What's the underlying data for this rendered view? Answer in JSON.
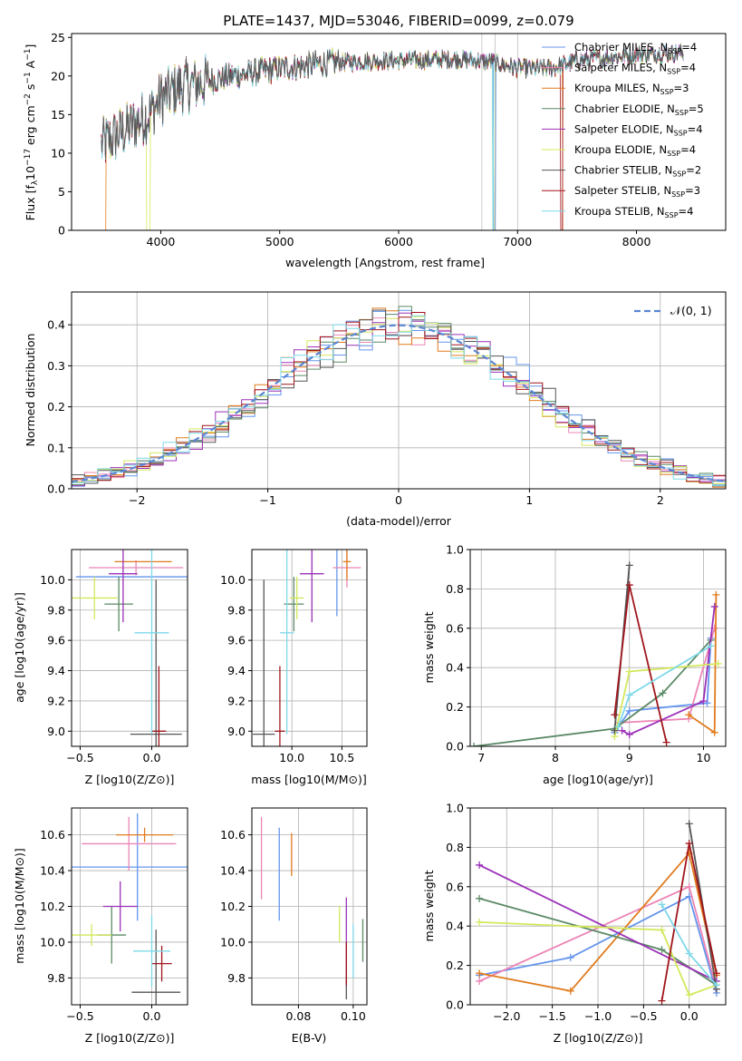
{
  "title": "PLATE=1437, MJD=53046, FIBERID=0099, z=0.079",
  "colors": {
    "Chabrier MILES": "#6495ed",
    "Salpeter MILES": "#ec85b6",
    "Kroupa MILES": "#e07b1e",
    "Chabrier ELODIE": "#5b8a66",
    "Salpeter ELODIE": "#9b30b8",
    "Kroupa ELODIE": "#d4e85c",
    "Chabrier STELIB": "#555555",
    "Salpeter STELIB": "#a0151c",
    "Kroupa STELIB": "#7ed8e8"
  },
  "panel_spectrum": {
    "xlabel": "wavelength [Angstrom, rest frame]",
    "ylabel_main": "Flux [f",
    "ylabel_sub": "λ",
    "ylabel_rest": "10",
    "ylabel_exp": "−17",
    "ylabel_tail": " erg cm",
    "ylabel_exp2": "−2",
    "ylabel_tail2": " s",
    "ylabel_exp3": "−1",
    "ylabel_tail3": " A",
    "ylabel_exp4": "−1",
    "ylabel_end": "]",
    "legend": [
      {
        "name": "Chabrier MILES",
        "n": "4"
      },
      {
        "name": "Salpeter MILES",
        "n": "4"
      },
      {
        "name": "Kroupa MILES",
        "n": "3"
      },
      {
        "name": "Chabrier ELODIE",
        "n": "5"
      },
      {
        "name": "Salpeter ELODIE",
        "n": "4"
      },
      {
        "name": "Kroupa ELODIE",
        "n": "4"
      },
      {
        "name": "Chabrier STELIB",
        "n": "2"
      },
      {
        "name": "Salpeter STELIB",
        "n": "3"
      },
      {
        "name": "Kroupa STELIB",
        "n": "4"
      }
    ],
    "legend_n_prefix": "N",
    "legend_n_sub": "SSP",
    "legend_n_eq": "="
  },
  "panel_hist": {
    "xlabel": "(data-model)/error",
    "ylabel": "Normed distribution",
    "legend_label": "𝒩(0, 1)"
  },
  "panel_age_Z": {
    "xlabel_a": "Z [log",
    "xlabel_b": "10",
    "xlabel_c": "(Z/Z",
    "xlabel_d": "⊙",
    "xlabel_e": ")]",
    "ylabel": "age  [log10(age/yr)]"
  },
  "panel_age_mass": {
    "xlabel": "mass [log10(M/M⊙)]"
  },
  "panel_weight_age": {
    "xlabel": "age  [log10(age/yr)]",
    "ylabel": "mass weight"
  },
  "panel_mass_Z": {
    "xlabel": "Z [log10(Z/Z⊙)]",
    "ylabel": "mass [log10(M/M⊙)]"
  },
  "panel_mass_ebv": {
    "xlabel": "E(B-V)"
  },
  "panel_weight_Z": {
    "xlabel": "Z [log10(Z/Z⊙)]",
    "ylabel": "mass weight"
  },
  "chart_data": [
    {
      "type": "line",
      "title": "PLATE=1437, MJD=53046, FIBERID=0099, z=0.079",
      "xlabel": "wavelength [Angstrom, rest frame]",
      "xlim": [
        3250,
        8750
      ],
      "ylim": [
        0,
        25.5
      ],
      "xticks": [
        4000,
        5000,
        6000,
        7000,
        8000
      ],
      "yticks": [
        0,
        5,
        10,
        15,
        20,
        25
      ],
      "continuum": [
        [
          3500,
          11
        ],
        [
          3600,
          12
        ],
        [
          3750,
          13.5
        ],
        [
          3900,
          15
        ],
        [
          4000,
          17
        ],
        [
          4150,
          18.5
        ],
        [
          4300,
          19
        ],
        [
          4600,
          20
        ],
        [
          5000,
          21
        ],
        [
          5500,
          21.8
        ],
        [
          6000,
          22
        ],
        [
          6500,
          22.2
        ],
        [
          6800,
          21.8
        ],
        [
          7000,
          21
        ],
        [
          7300,
          21
        ],
        [
          7500,
          22
        ],
        [
          8000,
          22.8
        ],
        [
          8400,
          23
        ]
      ]
    },
    {
      "type": "line",
      "xlabel": "(data-model)/error",
      "ylabel": "Normed distribution",
      "xlim": [
        -2.5,
        2.5
      ],
      "ylim": [
        0,
        0.48
      ],
      "xticks": [
        -2,
        -1,
        0,
        1,
        2
      ],
      "yticks": [
        0.0,
        0.1,
        0.2,
        0.3,
        0.4
      ],
      "reference": "N(0,1)"
    },
    {
      "type": "scatter",
      "xlabel": "Z",
      "ylabel": "age",
      "xlim": [
        -0.56,
        0.25
      ],
      "ylim": [
        8.9,
        10.2
      ],
      "xticks": [
        -0.5,
        0.0
      ],
      "yticks": [
        9.0,
        9.2,
        9.4,
        9.6,
        9.8,
        10.0
      ],
      "points": [
        {
          "model": "Chabrier MILES",
          "x": -0.05,
          "xerr": 0.48,
          "y": 10.02,
          "yerr": 0.0
        },
        {
          "model": "Salpeter MILES",
          "x": -0.11,
          "xerr": 0.33,
          "y": 10.08,
          "yerr": 0.05
        },
        {
          "model": "Kroupa MILES",
          "x": -0.06,
          "xerr": 0.2,
          "y": 10.12,
          "yerr": 0.0
        },
        {
          "model": "Chabrier ELODIE",
          "x": -0.23,
          "xerr": 0.1,
          "y": 9.84,
          "yerr": 0.18
        },
        {
          "model": "Salpeter ELODIE",
          "x": -0.2,
          "xerr": 0.1,
          "y": 10.04,
          "yerr": 0.32
        },
        {
          "model": "Kroupa ELODIE",
          "x": -0.4,
          "xerr": 0.16,
          "y": 9.88,
          "yerr": 0.14
        },
        {
          "model": "Chabrier STELIB",
          "x": 0.03,
          "xerr": 0.18,
          "y": 8.98,
          "yerr": 1.02
        },
        {
          "model": "Salpeter STELIB",
          "x": 0.05,
          "xerr": 0.05,
          "y": 9.0,
          "yerr": 0.43
        },
        {
          "model": "Kroupa STELIB",
          "x": 0.0,
          "xerr": 0.12,
          "y": 9.65,
          "yerr": 0.67
        }
      ]
    },
    {
      "type": "scatter",
      "xlabel": "mass",
      "ylabel": "age",
      "xlim": [
        9.6,
        10.75
      ],
      "ylim": [
        8.9,
        10.2
      ],
      "xticks": [
        10.0,
        10.5
      ],
      "points": [
        {
          "model": "Chabrier MILES",
          "x": 10.45,
          "xerr": 0.0,
          "y": 10.02,
          "yerr": 0.26
        },
        {
          "model": "Salpeter MILES",
          "x": 10.55,
          "xerr": 0.14,
          "y": 10.08,
          "yerr": 0.13
        },
        {
          "model": "Kroupa MILES",
          "x": 10.55,
          "xerr": 0.04,
          "y": 10.12,
          "yerr": 0.12
        },
        {
          "model": "Chabrier ELODIE",
          "x": 10.02,
          "xerr": 0.1,
          "y": 9.84,
          "yerr": 0.18
        },
        {
          "model": "Salpeter ELODIE",
          "x": 10.2,
          "xerr": 0.12,
          "y": 10.04,
          "yerr": 0.32
        },
        {
          "model": "Kroupa ELODIE",
          "x": 10.05,
          "xerr": 0.07,
          "y": 9.88,
          "yerr": 0.14
        },
        {
          "model": "Chabrier STELIB",
          "x": 9.72,
          "xerr": 0.11,
          "y": 8.98,
          "yerr": 1.02
        },
        {
          "model": "Salpeter STELIB",
          "x": 9.88,
          "xerr": 0.05,
          "y": 9.0,
          "yerr": 0.43
        },
        {
          "model": "Kroupa STELIB",
          "x": 9.95,
          "xerr": 0.07,
          "y": 9.65,
          "yerr": 0.67
        }
      ]
    },
    {
      "type": "line",
      "xlabel": "age",
      "ylabel": "mass weight",
      "xlim": [
        6.85,
        10.3
      ],
      "ylim": [
        0,
        1.0
      ],
      "xticks": [
        7,
        8,
        9,
        10
      ],
      "yticks": [
        0.0,
        0.2,
        0.4,
        0.6,
        0.8,
        1.0
      ],
      "series": [
        {
          "model": "Chabrier MILES",
          "points": [
            [
              8.8,
              0.07
            ],
            [
              9.0,
              0.18
            ],
            [
              10.05,
              0.22
            ],
            [
              10.1,
              0.55
            ]
          ]
        },
        {
          "model": "Salpeter MILES",
          "points": [
            [
              8.85,
              0.12
            ],
            [
              9.8,
              0.14
            ],
            [
              10.15,
              0.6
            ]
          ]
        },
        {
          "model": "Kroupa MILES",
          "points": [
            [
              9.8,
              0.16
            ],
            [
              10.15,
              0.07
            ],
            [
              10.17,
              0.77
            ]
          ]
        },
        {
          "model": "Chabrier ELODIE",
          "points": [
            [
              6.9,
              0.0
            ],
            [
              8.8,
              0.09
            ],
            [
              9.45,
              0.27
            ],
            [
              10.1,
              0.54
            ]
          ]
        },
        {
          "model": "Salpeter ELODIE",
          "points": [
            [
              8.9,
              0.08
            ],
            [
              9.0,
              0.06
            ],
            [
              10.0,
              0.23
            ],
            [
              10.15,
              0.71
            ]
          ]
        },
        {
          "model": "Kroupa ELODIE",
          "points": [
            [
              8.8,
              0.05
            ],
            [
              9.0,
              0.38
            ],
            [
              10.2,
              0.42
            ]
          ]
        },
        {
          "model": "Chabrier STELIB",
          "points": [
            [
              8.8,
              0.08
            ],
            [
              9.0,
              0.92
            ]
          ]
        },
        {
          "model": "Salpeter STELIB",
          "points": [
            [
              8.8,
              0.16
            ],
            [
              9.0,
              0.82
            ],
            [
              9.5,
              0.02
            ]
          ]
        },
        {
          "model": "Kroupa STELIB",
          "points": [
            [
              8.85,
              0.1
            ],
            [
              9.0,
              0.26
            ],
            [
              10.1,
              0.51
            ]
          ]
        }
      ]
    },
    {
      "type": "scatter",
      "xlabel": "Z",
      "ylabel": "mass",
      "xlim": [
        -0.56,
        0.25
      ],
      "ylim": [
        9.65,
        10.75
      ],
      "xticks": [
        -0.5,
        0.0
      ],
      "yticks": [
        9.8,
        10.0,
        10.2,
        10.4,
        10.6
      ],
      "points": [
        {
          "model": "Chabrier MILES",
          "x": -0.1,
          "xerr": 0.48,
          "y": 10.42,
          "yerr": 0.3
        },
        {
          "model": "Salpeter MILES",
          "x": -0.16,
          "xerr": 0.33,
          "y": 10.55,
          "yerr": 0.15
        },
        {
          "model": "Kroupa MILES",
          "x": -0.05,
          "xerr": 0.2,
          "y": 10.6,
          "yerr": 0.04
        },
        {
          "model": "Chabrier ELODIE",
          "x": -0.28,
          "xerr": 0.1,
          "y": 10.04,
          "yerr": 0.16
        },
        {
          "model": "Salpeter ELODIE",
          "x": -0.22,
          "xerr": 0.12,
          "y": 10.2,
          "yerr": 0.14
        },
        {
          "model": "Kroupa ELODIE",
          "x": -0.42,
          "xerr": 0.14,
          "y": 10.04,
          "yerr": 0.06
        },
        {
          "model": "Chabrier STELIB",
          "x": 0.03,
          "xerr": 0.17,
          "y": 9.72,
          "yerr": 0.35
        },
        {
          "model": "Salpeter STELIB",
          "x": 0.07,
          "xerr": 0.07,
          "y": 9.88,
          "yerr": 0.1
        },
        {
          "model": "Kroupa STELIB",
          "x": 0.0,
          "xerr": 0.13,
          "y": 9.95,
          "yerr": 0.2
        }
      ]
    },
    {
      "type": "scatter",
      "xlabel": "E(B-V)",
      "ylabel": "mass",
      "xlim": [
        0.063,
        0.105
      ],
      "ylim": [
        9.65,
        10.75
      ],
      "xticks": [
        0.08,
        0.1
      ],
      "points": [
        {
          "model": "Chabrier MILES",
          "x": 0.073,
          "y": 10.38,
          "yerr": 0.26
        },
        {
          "model": "Salpeter MILES",
          "x": 0.0665,
          "y": 10.47,
          "yerr": 0.23
        },
        {
          "model": "Kroupa MILES",
          "x": 0.0775,
          "y": 10.49,
          "yerr": 0.12
        },
        {
          "model": "Chabrier ELODIE",
          "x": 0.1035,
          "y": 10.01,
          "yerr": 0.12
        },
        {
          "model": "Salpeter ELODIE",
          "x": 0.0975,
          "y": 10.0,
          "yerr": 0.25
        },
        {
          "model": "Kroupa ELODIE",
          "x": 0.095,
          "y": 10.1,
          "yerr": 0.1
        },
        {
          "model": "Chabrier STELIB",
          "x": 0.0975,
          "y": 9.75,
          "yerr": 0.07
        },
        {
          "model": "Salpeter STELIB",
          "x": 0.0975,
          "y": 9.88,
          "yerr": 0.12
        },
        {
          "model": "Kroupa STELIB",
          "x": 0.1,
          "y": 9.95,
          "yerr": 0.15
        }
      ]
    },
    {
      "type": "line",
      "xlabel": "Z",
      "ylabel": "mass weight",
      "xlim": [
        -2.4,
        0.4
      ],
      "ylim": [
        0,
        1.0
      ],
      "xticks": [
        -2.0,
        -1.5,
        -1.0,
        -0.5,
        0.0
      ],
      "yticks": [
        0.0,
        0.2,
        0.4,
        0.6,
        0.8,
        1.0
      ],
      "series": [
        {
          "model": "Chabrier MILES",
          "points": [
            [
              -2.3,
              0.15
            ],
            [
              -1.3,
              0.24
            ],
            [
              0.0,
              0.55
            ],
            [
              0.3,
              0.06
            ]
          ]
        },
        {
          "model": "Salpeter MILES",
          "points": [
            [
              -2.3,
              0.12
            ],
            [
              0.0,
              0.6
            ],
            [
              0.3,
              0.08
            ]
          ]
        },
        {
          "model": "Kroupa MILES",
          "points": [
            [
              -2.3,
              0.16
            ],
            [
              -1.3,
              0.07
            ],
            [
              0.0,
              0.77
            ],
            [
              0.3,
              0.15
            ]
          ]
        },
        {
          "model": "Chabrier ELODIE",
          "points": [
            [
              -2.3,
              0.54
            ],
            [
              -0.3,
              0.28
            ],
            [
              0.3,
              0.1
            ]
          ]
        },
        {
          "model": "Salpeter ELODIE",
          "points": [
            [
              -2.3,
              0.71
            ],
            [
              0.3,
              0.12
            ]
          ]
        },
        {
          "model": "Kroupa ELODIE",
          "points": [
            [
              -2.3,
              0.42
            ],
            [
              -0.3,
              0.38
            ],
            [
              0.0,
              0.05
            ],
            [
              0.3,
              0.1
            ]
          ]
        },
        {
          "model": "Chabrier STELIB",
          "points": [
            [
              0.0,
              0.92
            ],
            [
              0.3,
              0.08
            ]
          ]
        },
        {
          "model": "Salpeter STELIB",
          "points": [
            [
              -0.3,
              0.02
            ],
            [
              0.0,
              0.82
            ],
            [
              0.3,
              0.16
            ]
          ]
        },
        {
          "model": "Kroupa STELIB",
          "points": [
            [
              -0.3,
              0.51
            ],
            [
              0.0,
              0.26
            ],
            [
              0.3,
              0.1
            ]
          ]
        }
      ]
    }
  ]
}
